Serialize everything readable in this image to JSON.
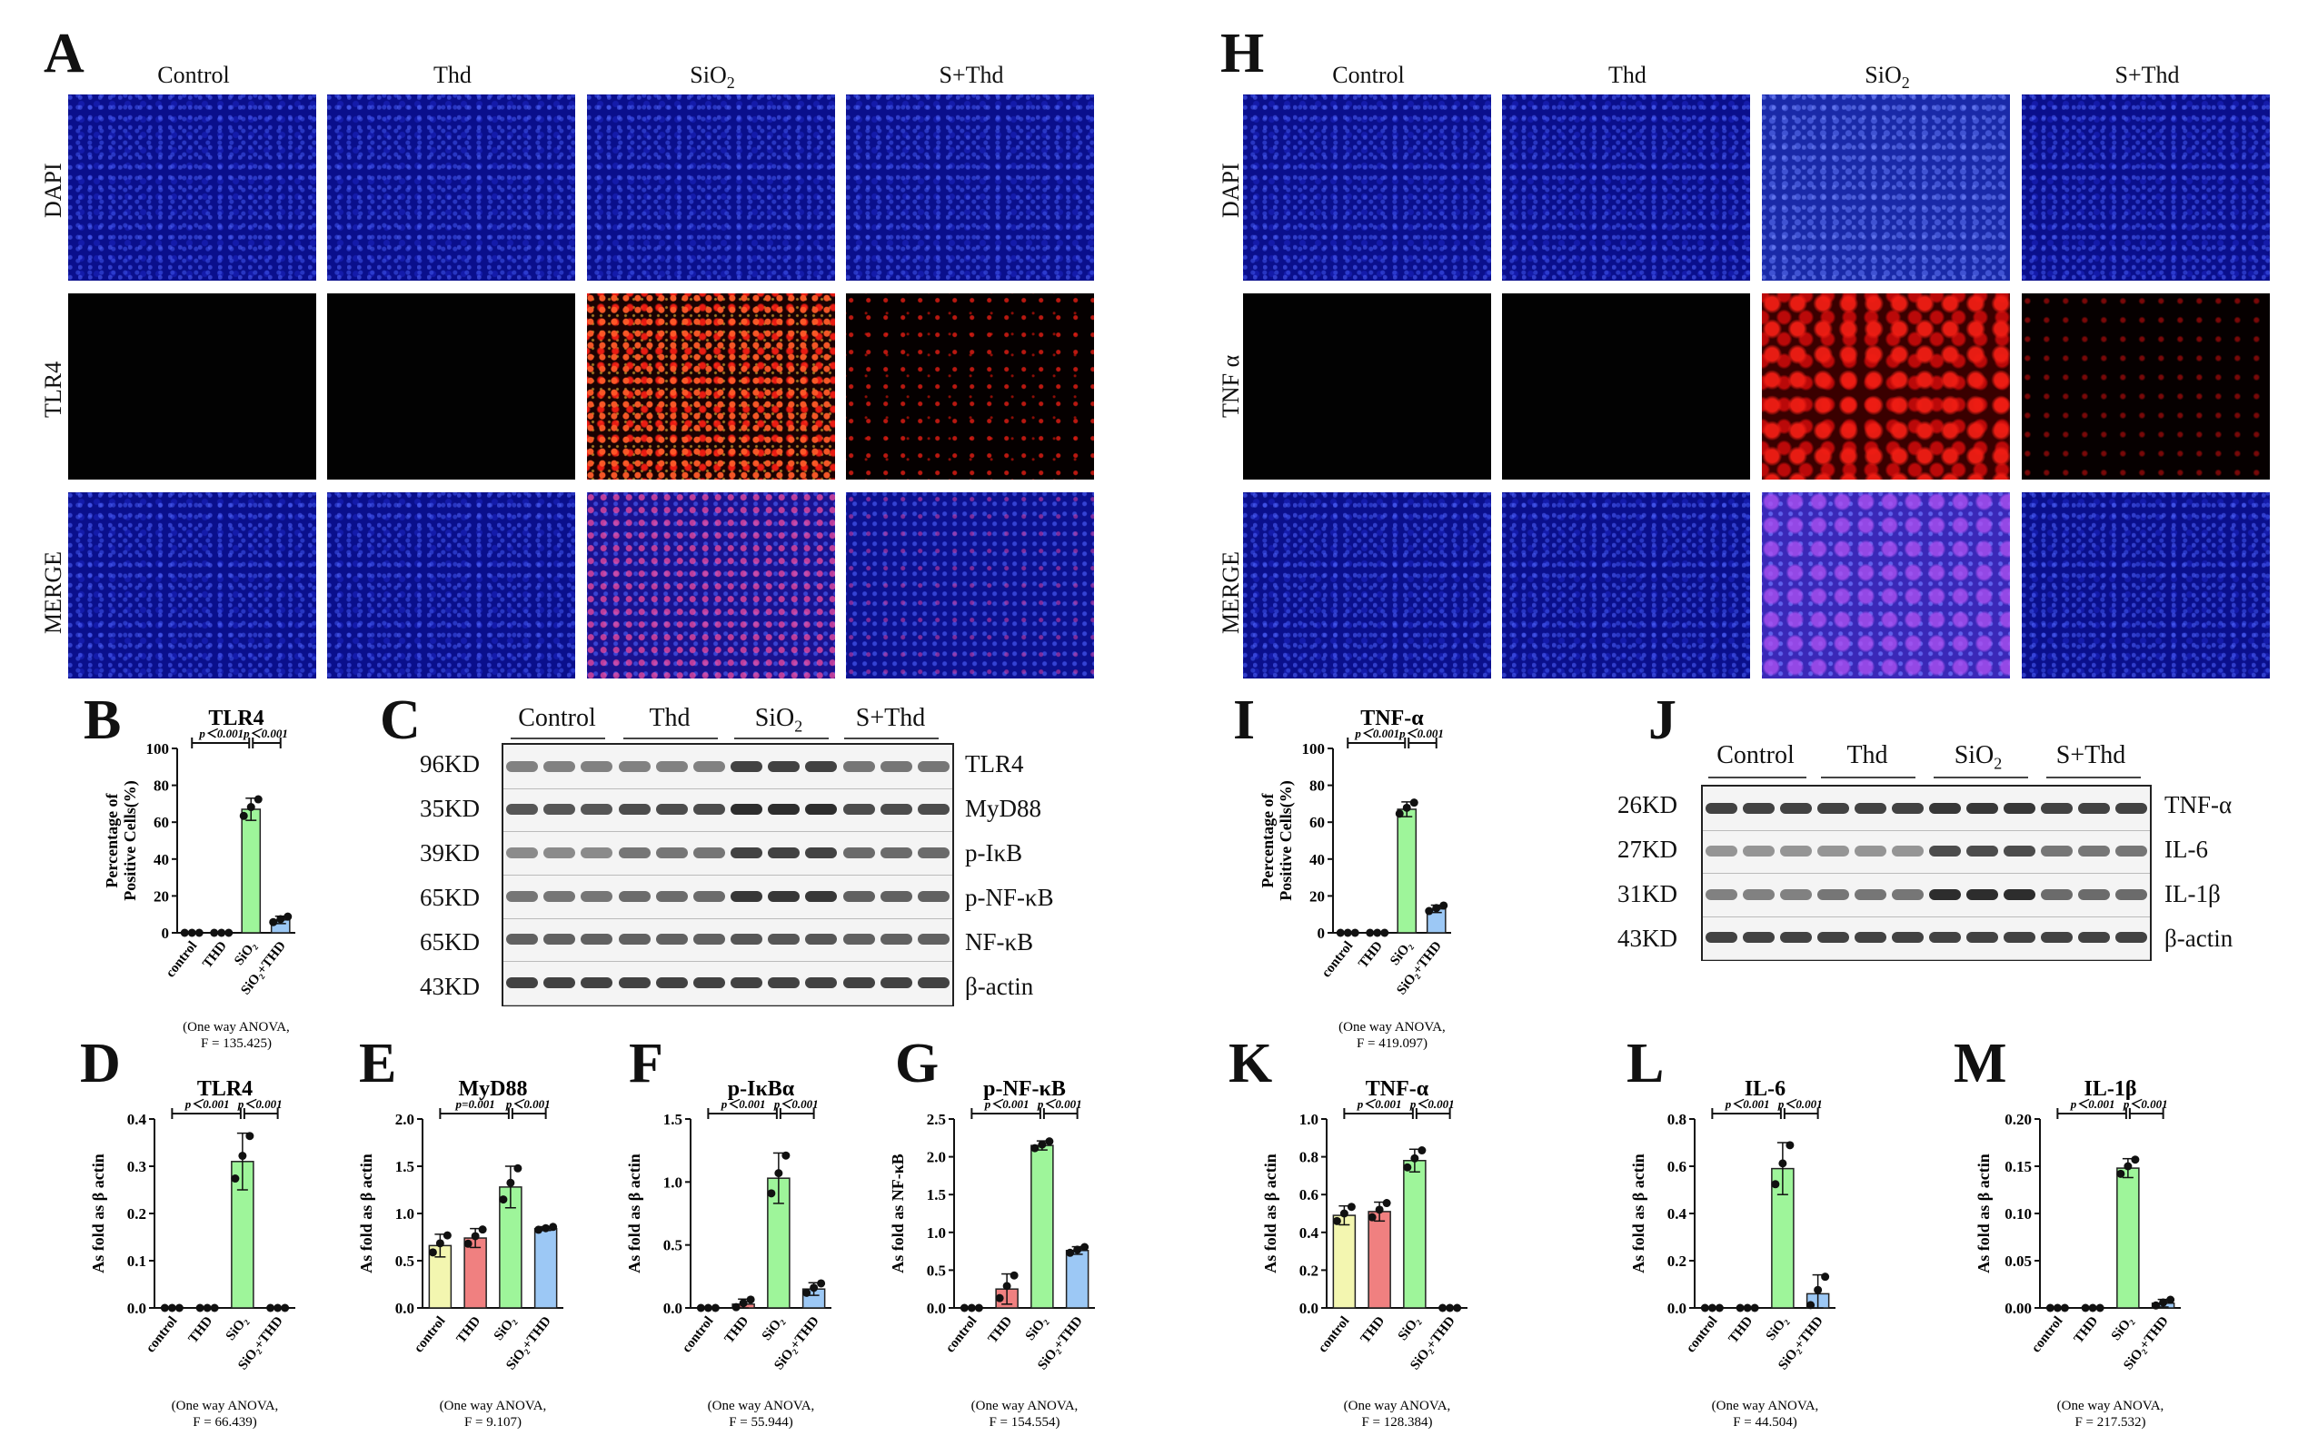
{
  "panels": {
    "A": "A",
    "B": "B",
    "C": "C",
    "D": "D",
    "E": "E",
    "F": "F",
    "G": "G",
    "H": "H",
    "I": "I",
    "J": "J",
    "K": "K",
    "L": "L",
    "M": "M"
  },
  "micro_groups": [
    "Control",
    "Thd",
    "SiO",
    "S+Thd"
  ],
  "sub2": "2",
  "left_rows": [
    "DAPI",
    "TLR4",
    "MERGE"
  ],
  "right_rows": [
    "DAPI",
    "TNF α",
    "MERGE"
  ],
  "western_C": {
    "groups": [
      "Control",
      "Thd",
      "SiO",
      "S+Thd"
    ],
    "rows": [
      {
        "kd": "96KD",
        "protein": "TLR4"
      },
      {
        "kd": "35KD",
        "protein": "MyD88"
      },
      {
        "kd": "39KD",
        "protein": "p-IκB"
      },
      {
        "kd": "65KD",
        "protein": "p-NF-κB"
      },
      {
        "kd": "65KD",
        "protein": "NF-κB"
      },
      {
        "kd": "43KD",
        "protein": "β-actin"
      }
    ]
  },
  "western_J": {
    "groups": [
      "Control",
      "Thd",
      "SiO",
      "S+Thd"
    ],
    "rows": [
      {
        "kd": "26KD",
        "protein": "TNF-α"
      },
      {
        "kd": "27KD",
        "protein": "IL-6"
      },
      {
        "kd": "31KD",
        "protein": "IL-1β"
      },
      {
        "kd": "43KD",
        "protein": "β-actin"
      }
    ]
  },
  "chart_data": [
    {
      "id": "B",
      "type": "bar",
      "title": "TLR4",
      "ylabel": "Percentage of Positive Cells(%)",
      "categories": [
        "control",
        "THD",
        "SiO₂",
        "SiO₂+THD"
      ],
      "values": [
        0,
        0,
        67,
        7
      ],
      "errors": [
        0,
        0,
        6,
        2
      ],
      "ylim": [
        0,
        100
      ],
      "yticks": [
        0,
        20,
        40,
        60,
        80,
        100
      ],
      "p_labels": [
        "p＜0.001",
        "p＜0.001"
      ],
      "anova": [
        "(One way ANOVA,",
        "F = 135.425)"
      ]
    },
    {
      "id": "I",
      "type": "bar",
      "title": "TNF-α",
      "ylabel": "Percentage of Positive Cells(%)",
      "categories": [
        "control",
        "THD",
        "SiO₂",
        "SiO₂+THD"
      ],
      "values": [
        0,
        0,
        67,
        13
      ],
      "errors": [
        0,
        0,
        4,
        2
      ],
      "ylim": [
        0,
        100
      ],
      "yticks": [
        0,
        20,
        40,
        60,
        80,
        100
      ],
      "p_labels": [
        "p＜0.001",
        "p＜0.001"
      ],
      "anova": [
        "(One way ANOVA,",
        "F = 419.097)"
      ]
    },
    {
      "id": "D",
      "type": "bar",
      "title": "TLR4",
      "ylabel": "As fold as β actin",
      "categories": [
        "control",
        "THD",
        "SiO₂",
        "SiO₂+THD"
      ],
      "values": [
        0,
        0,
        0.31,
        0
      ],
      "errors": [
        0,
        0,
        0.06,
        0
      ],
      "ylim": [
        0,
        0.4
      ],
      "yticks": [
        0.0,
        0.1,
        0.2,
        0.3,
        0.4
      ],
      "p_labels": [
        "p＜0.001",
        "p＜0.001"
      ],
      "anova": [
        "(One way ANOVA,",
        "F = 66.439)"
      ]
    },
    {
      "id": "E",
      "type": "bar",
      "title": "MyD88",
      "ylabel": "As fold as β actin",
      "categories": [
        "control",
        "THD",
        "SiO₂",
        "SiO₂+THD"
      ],
      "values": [
        0.66,
        0.74,
        1.28,
        0.84
      ],
      "errors": [
        0.12,
        0.1,
        0.22,
        0.02
      ],
      "ylim": [
        0,
        2.0
      ],
      "yticks": [
        0.0,
        0.5,
        1.0,
        1.5,
        2.0
      ],
      "p_labels": [
        "p=0.001",
        "p＜0.001"
      ],
      "anova": [
        "(One way ANOVA,",
        "F = 9.107)"
      ]
    },
    {
      "id": "F",
      "type": "bar",
      "title": "p-IκBα",
      "ylabel": "As fold as β actin",
      "categories": [
        "control",
        "THD",
        "SiO₂",
        "SiO₂+THD"
      ],
      "values": [
        0,
        0.03,
        1.03,
        0.15
      ],
      "errors": [
        0,
        0.04,
        0.2,
        0.05
      ],
      "ylim": [
        0,
        1.5
      ],
      "yticks": [
        0.0,
        0.5,
        1.0,
        1.5
      ],
      "p_labels": [
        "p＜0.001",
        "p＜0.001"
      ],
      "anova": [
        "(One way ANOVA,",
        "F = 55.944)"
      ]
    },
    {
      "id": "G",
      "type": "bar",
      "title": "p-NF-κB",
      "ylabel": "As fold as NF-κB",
      "categories": [
        "control",
        "THD",
        "SiO₂",
        "SiO₂+THD"
      ],
      "values": [
        0,
        0.25,
        2.15,
        0.76
      ],
      "errors": [
        0,
        0.2,
        0.06,
        0.05
      ],
      "ylim": [
        0,
        2.5
      ],
      "yticks": [
        0.0,
        0.5,
        1.0,
        1.5,
        2.0,
        2.5
      ],
      "p_labels": [
        "p＜0.001",
        "p＜0.001"
      ],
      "anova": [
        "(One way ANOVA,",
        "F = 154.554)"
      ]
    },
    {
      "id": "K",
      "type": "bar",
      "title": "TNF-α",
      "ylabel": "As fold as β actin",
      "categories": [
        "control",
        "THD",
        "SiO₂",
        "SiO₂+THD"
      ],
      "values": [
        0.49,
        0.51,
        0.78,
        0
      ],
      "errors": [
        0.05,
        0.05,
        0.06,
        0
      ],
      "ylim": [
        0,
        1.0
      ],
      "yticks": [
        0.0,
        0.2,
        0.4,
        0.6,
        0.8,
        1.0
      ],
      "p_labels": [
        "p＜0.001",
        "p＜0.001"
      ],
      "anova": [
        "(One way ANOVA,",
        "F = 128.384)"
      ]
    },
    {
      "id": "L",
      "type": "bar",
      "title": "IL-6",
      "ylabel": "As fold as β actin",
      "categories": [
        "control",
        "THD",
        "SiO₂",
        "SiO₂+THD"
      ],
      "values": [
        0,
        0,
        0.59,
        0.06
      ],
      "errors": [
        0,
        0,
        0.11,
        0.08
      ],
      "ylim": [
        0,
        0.8
      ],
      "yticks": [
        0.0,
        0.2,
        0.4,
        0.6,
        0.8
      ],
      "p_labels": [
        "p＜0.001",
        "p＜0.001"
      ],
      "anova": [
        "(One way ANOVA,",
        "F = 44.504)"
      ]
    },
    {
      "id": "M",
      "type": "bar",
      "title": "IL-1β",
      "ylabel": "As fold as β actin",
      "categories": [
        "control",
        "THD",
        "SiO₂",
        "SiO₂+THD"
      ],
      "values": [
        0,
        0,
        0.148,
        0.005
      ],
      "errors": [
        0,
        0,
        0.01,
        0.004
      ],
      "ylim": [
        0,
        0.2
      ],
      "yticks": [
        0.0,
        0.05,
        0.1,
        0.15,
        0.2
      ],
      "p_labels": [
        "p＜0.001",
        "p＜0.001"
      ],
      "anova": [
        "(One way ANOVA,",
        "F = 217.532)"
      ]
    }
  ],
  "colors": {
    "control": "#f3f6b0",
    "thd": "#f08080",
    "sio2": "#9ef59a",
    "sio2thd": "#9cc8f5"
  }
}
